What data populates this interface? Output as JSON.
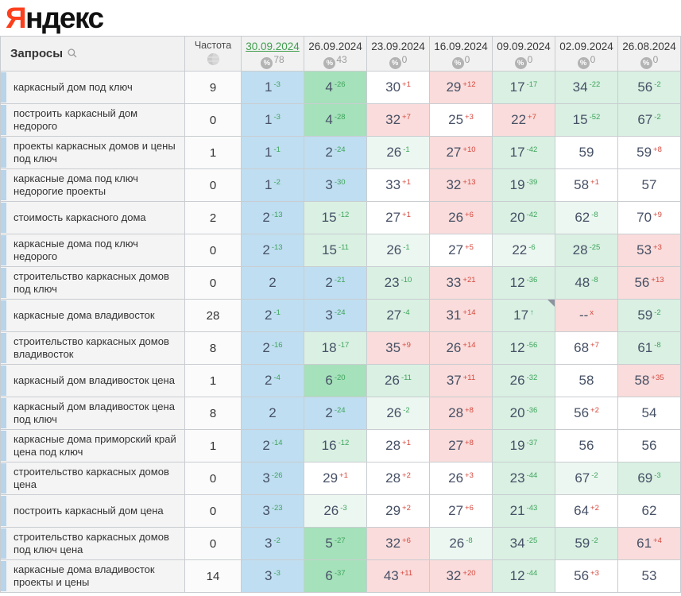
{
  "logo": {
    "first": "Я",
    "rest": "ндекс"
  },
  "icons": {
    "search": "search-icon",
    "frequency": "wordstat-icon",
    "percent_symbol": "%"
  },
  "colors": {
    "brand_red": "#fc3f1d",
    "selected_date_green": "#3f9e4d",
    "delta_improved": "#3fa45c",
    "delta_worsened": "#d6483e",
    "cell_blue": "#bfdef1",
    "cell_green": "#a5e1ba",
    "cell_lightgreen": "#d9f0e2",
    "cell_palegreen": "#ecf7f1",
    "cell_pink": "#f9dcdb",
    "row_strip_blue": "#b7d4ea"
  },
  "table": {
    "query_header": "Запросы",
    "frequency_header": "Частота",
    "columns": [
      {
        "date": "30.09.2024",
        "percent": "78",
        "selected": true
      },
      {
        "date": "26.09.2024",
        "percent": "43",
        "selected": false
      },
      {
        "date": "23.09.2024",
        "percent": "0",
        "selected": false
      },
      {
        "date": "16.09.2024",
        "percent": "0",
        "selected": false
      },
      {
        "date": "09.09.2024",
        "percent": "0",
        "selected": false
      },
      {
        "date": "02.09.2024",
        "percent": "0",
        "selected": false
      },
      {
        "date": "26.08.2024",
        "percent": "0",
        "selected": false
      }
    ],
    "rows": [
      {
        "query": "каркасный дом под ключ",
        "frequency": "9",
        "cells": [
          {
            "v": "1",
            "d": "-3",
            "bg": "blue"
          },
          {
            "v": "4",
            "d": "-26",
            "bg": "green"
          },
          {
            "v": "30",
            "d": "+1",
            "bg": "white"
          },
          {
            "v": "29",
            "d": "+12",
            "bg": "pink"
          },
          {
            "v": "17",
            "d": "-17",
            "bg": "lgreen"
          },
          {
            "v": "34",
            "d": "-22",
            "bg": "lgreen"
          },
          {
            "v": "56",
            "d": "-2",
            "bg": "lgreen"
          }
        ]
      },
      {
        "query": "построить каркасный дом недорого",
        "frequency": "0",
        "cells": [
          {
            "v": "1",
            "d": "-3",
            "bg": "blue"
          },
          {
            "v": "4",
            "d": "-28",
            "bg": "green"
          },
          {
            "v": "32",
            "d": "+7",
            "bg": "pink"
          },
          {
            "v": "25",
            "d": "+3",
            "bg": "white"
          },
          {
            "v": "22",
            "d": "+7",
            "bg": "pink"
          },
          {
            "v": "15",
            "d": "-52",
            "bg": "lgreen"
          },
          {
            "v": "67",
            "d": "-2",
            "bg": "lgreen"
          }
        ]
      },
      {
        "query": "проекты каркасных домов и цены под ключ",
        "frequency": "1",
        "cells": [
          {
            "v": "1",
            "d": "-1",
            "bg": "blue"
          },
          {
            "v": "2",
            "d": "-24",
            "bg": "blue"
          },
          {
            "v": "26",
            "d": "-1",
            "bg": "pgreen"
          },
          {
            "v": "27",
            "d": "+10",
            "bg": "pink"
          },
          {
            "v": "17",
            "d": "-42",
            "bg": "lgreen"
          },
          {
            "v": "59",
            "d": "",
            "bg": "white"
          },
          {
            "v": "59",
            "d": "+8",
            "bg": "white"
          }
        ]
      },
      {
        "query": "каркасные дома под ключ недорогие проекты",
        "frequency": "0",
        "cells": [
          {
            "v": "1",
            "d": "-2",
            "bg": "blue"
          },
          {
            "v": "3",
            "d": "-30",
            "bg": "blue"
          },
          {
            "v": "33",
            "d": "+1",
            "bg": "white"
          },
          {
            "v": "32",
            "d": "+13",
            "bg": "pink"
          },
          {
            "v": "19",
            "d": "-39",
            "bg": "lgreen"
          },
          {
            "v": "58",
            "d": "+1",
            "bg": "white"
          },
          {
            "v": "57",
            "d": "",
            "bg": "white"
          }
        ]
      },
      {
        "query": "стоимость каркасного дома",
        "frequency": "2",
        "cells": [
          {
            "v": "2",
            "d": "-13",
            "bg": "blue"
          },
          {
            "v": "15",
            "d": "-12",
            "bg": "lgreen"
          },
          {
            "v": "27",
            "d": "+1",
            "bg": "white"
          },
          {
            "v": "26",
            "d": "+6",
            "bg": "pink"
          },
          {
            "v": "20",
            "d": "-42",
            "bg": "lgreen"
          },
          {
            "v": "62",
            "d": "-8",
            "bg": "pgreen"
          },
          {
            "v": "70",
            "d": "+9",
            "bg": "white"
          }
        ]
      },
      {
        "query": "каркасные дома под ключ недорого",
        "frequency": "0",
        "cells": [
          {
            "v": "2",
            "d": "-13",
            "bg": "blue"
          },
          {
            "v": "15",
            "d": "-11",
            "bg": "lgreen"
          },
          {
            "v": "26",
            "d": "-1",
            "bg": "pgreen"
          },
          {
            "v": "27",
            "d": "+5",
            "bg": "white"
          },
          {
            "v": "22",
            "d": "-6",
            "bg": "pgreen"
          },
          {
            "v": "28",
            "d": "-25",
            "bg": "lgreen"
          },
          {
            "v": "53",
            "d": "+3",
            "bg": "pink"
          }
        ]
      },
      {
        "query": "строительство каркасных домов под ключ",
        "frequency": "0",
        "cells": [
          {
            "v": "2",
            "d": "",
            "bg": "blue"
          },
          {
            "v": "2",
            "d": "-21",
            "bg": "blue"
          },
          {
            "v": "23",
            "d": "-10",
            "bg": "lgreen"
          },
          {
            "v": "33",
            "d": "+21",
            "bg": "pink"
          },
          {
            "v": "12",
            "d": "-36",
            "bg": "lgreen"
          },
          {
            "v": "48",
            "d": "-8",
            "bg": "lgreen"
          },
          {
            "v": "56",
            "d": "+13",
            "bg": "pink"
          }
        ]
      },
      {
        "query": "каркасные дома владивосток",
        "frequency": "28",
        "cells": [
          {
            "v": "2",
            "d": "-1",
            "bg": "blue"
          },
          {
            "v": "3",
            "d": "-24",
            "bg": "blue"
          },
          {
            "v": "27",
            "d": "-4",
            "bg": "lgreen"
          },
          {
            "v": "31",
            "d": "+14",
            "bg": "pink"
          },
          {
            "v": "17",
            "d": "↑",
            "bg": "lgreen",
            "note": true
          },
          {
            "v": "--",
            "d": "x",
            "bg": "pink"
          },
          {
            "v": "59",
            "d": "-2",
            "bg": "lgreen"
          }
        ]
      },
      {
        "query": "строительство каркасных домов владивосток",
        "frequency": "8",
        "cells": [
          {
            "v": "2",
            "d": "-16",
            "bg": "blue"
          },
          {
            "v": "18",
            "d": "-17",
            "bg": "lgreen"
          },
          {
            "v": "35",
            "d": "+9",
            "bg": "pink"
          },
          {
            "v": "26",
            "d": "+14",
            "bg": "pink"
          },
          {
            "v": "12",
            "d": "-56",
            "bg": "lgreen"
          },
          {
            "v": "68",
            "d": "+7",
            "bg": "white"
          },
          {
            "v": "61",
            "d": "-8",
            "bg": "lgreen"
          }
        ]
      },
      {
        "query": "каркасный дом владивосток цена",
        "frequency": "1",
        "cells": [
          {
            "v": "2",
            "d": "-4",
            "bg": "blue"
          },
          {
            "v": "6",
            "d": "-20",
            "bg": "green"
          },
          {
            "v": "26",
            "d": "-11",
            "bg": "lgreen"
          },
          {
            "v": "37",
            "d": "+11",
            "bg": "pink"
          },
          {
            "v": "26",
            "d": "-32",
            "bg": "lgreen"
          },
          {
            "v": "58",
            "d": "",
            "bg": "white"
          },
          {
            "v": "58",
            "d": "+35",
            "bg": "pink"
          }
        ]
      },
      {
        "query": "каркасный дом владивосток цена под ключ",
        "frequency": "8",
        "cells": [
          {
            "v": "2",
            "d": "",
            "bg": "blue"
          },
          {
            "v": "2",
            "d": "-24",
            "bg": "blue"
          },
          {
            "v": "26",
            "d": "-2",
            "bg": "pgreen"
          },
          {
            "v": "28",
            "d": "+8",
            "bg": "pink"
          },
          {
            "v": "20",
            "d": "-36",
            "bg": "lgreen"
          },
          {
            "v": "56",
            "d": "+2",
            "bg": "white"
          },
          {
            "v": "54",
            "d": "",
            "bg": "white"
          }
        ]
      },
      {
        "query": "каркасные дома приморский край цена под ключ",
        "frequency": "1",
        "cells": [
          {
            "v": "2",
            "d": "-14",
            "bg": "blue"
          },
          {
            "v": "16",
            "d": "-12",
            "bg": "lgreen"
          },
          {
            "v": "28",
            "d": "+1",
            "bg": "white"
          },
          {
            "v": "27",
            "d": "+8",
            "bg": "pink"
          },
          {
            "v": "19",
            "d": "-37",
            "bg": "lgreen"
          },
          {
            "v": "56",
            "d": "",
            "bg": "white"
          },
          {
            "v": "56",
            "d": "",
            "bg": "white"
          }
        ]
      },
      {
        "query": "строительство каркасных домов цена",
        "frequency": "0",
        "cells": [
          {
            "v": "3",
            "d": "-26",
            "bg": "blue"
          },
          {
            "v": "29",
            "d": "+1",
            "bg": "white"
          },
          {
            "v": "28",
            "d": "+2",
            "bg": "white"
          },
          {
            "v": "26",
            "d": "+3",
            "bg": "white"
          },
          {
            "v": "23",
            "d": "-44",
            "bg": "lgreen"
          },
          {
            "v": "67",
            "d": "-2",
            "bg": "pgreen"
          },
          {
            "v": "69",
            "d": "-3",
            "bg": "lgreen"
          }
        ]
      },
      {
        "query": "построить каркасный дом цена",
        "frequency": "0",
        "cells": [
          {
            "v": "3",
            "d": "-23",
            "bg": "blue"
          },
          {
            "v": "26",
            "d": "-3",
            "bg": "pgreen"
          },
          {
            "v": "29",
            "d": "+2",
            "bg": "white"
          },
          {
            "v": "27",
            "d": "+6",
            "bg": "white"
          },
          {
            "v": "21",
            "d": "-43",
            "bg": "lgreen"
          },
          {
            "v": "64",
            "d": "+2",
            "bg": "white"
          },
          {
            "v": "62",
            "d": "",
            "bg": "white"
          }
        ]
      },
      {
        "query": "строительство каркасных домов под ключ цена",
        "frequency": "0",
        "cells": [
          {
            "v": "3",
            "d": "-2",
            "bg": "blue"
          },
          {
            "v": "5",
            "d": "-27",
            "bg": "green"
          },
          {
            "v": "32",
            "d": "+6",
            "bg": "pink"
          },
          {
            "v": "26",
            "d": "-8",
            "bg": "pgreen"
          },
          {
            "v": "34",
            "d": "-25",
            "bg": "lgreen"
          },
          {
            "v": "59",
            "d": "-2",
            "bg": "lgreen"
          },
          {
            "v": "61",
            "d": "+4",
            "bg": "pink"
          }
        ]
      },
      {
        "query": "каркасные дома владивосток проекты и цены",
        "frequency": "14",
        "cells": [
          {
            "v": "3",
            "d": "-3",
            "bg": "blue"
          },
          {
            "v": "6",
            "d": "-37",
            "bg": "green"
          },
          {
            "v": "43",
            "d": "+11",
            "bg": "pink"
          },
          {
            "v": "32",
            "d": "+20",
            "bg": "pink"
          },
          {
            "v": "12",
            "d": "-44",
            "bg": "lgreen"
          },
          {
            "v": "56",
            "d": "+3",
            "bg": "white"
          },
          {
            "v": "53",
            "d": "",
            "bg": "white"
          }
        ]
      }
    ]
  }
}
